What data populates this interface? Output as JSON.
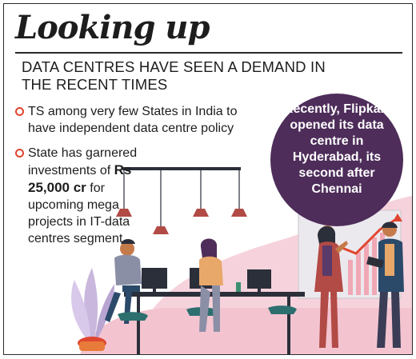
{
  "headline": "Looking up",
  "subheading": "DATA CENTRES HAVE SEEN A DEMAND IN THE RECENT TIMES",
  "bullets": [
    {
      "text": "TS among very few States in India to have independent data centre policy"
    },
    {
      "text_before": "State has garnered investments of ",
      "amount": "Rs 25,000 cr",
      "text_after": " for upcoming mega projects in IT-data centres segment"
    }
  ],
  "callout": "Recently, Flipkart opened its data centre in Hyderabad, its second after Chennai",
  "colors": {
    "accent_red": "#e0452f",
    "callout_purple": "#4e2d5a",
    "background_pink": "#f6d3dc",
    "lamp_red": "#b24a45",
    "desk_dark": "#2b2f3a"
  }
}
